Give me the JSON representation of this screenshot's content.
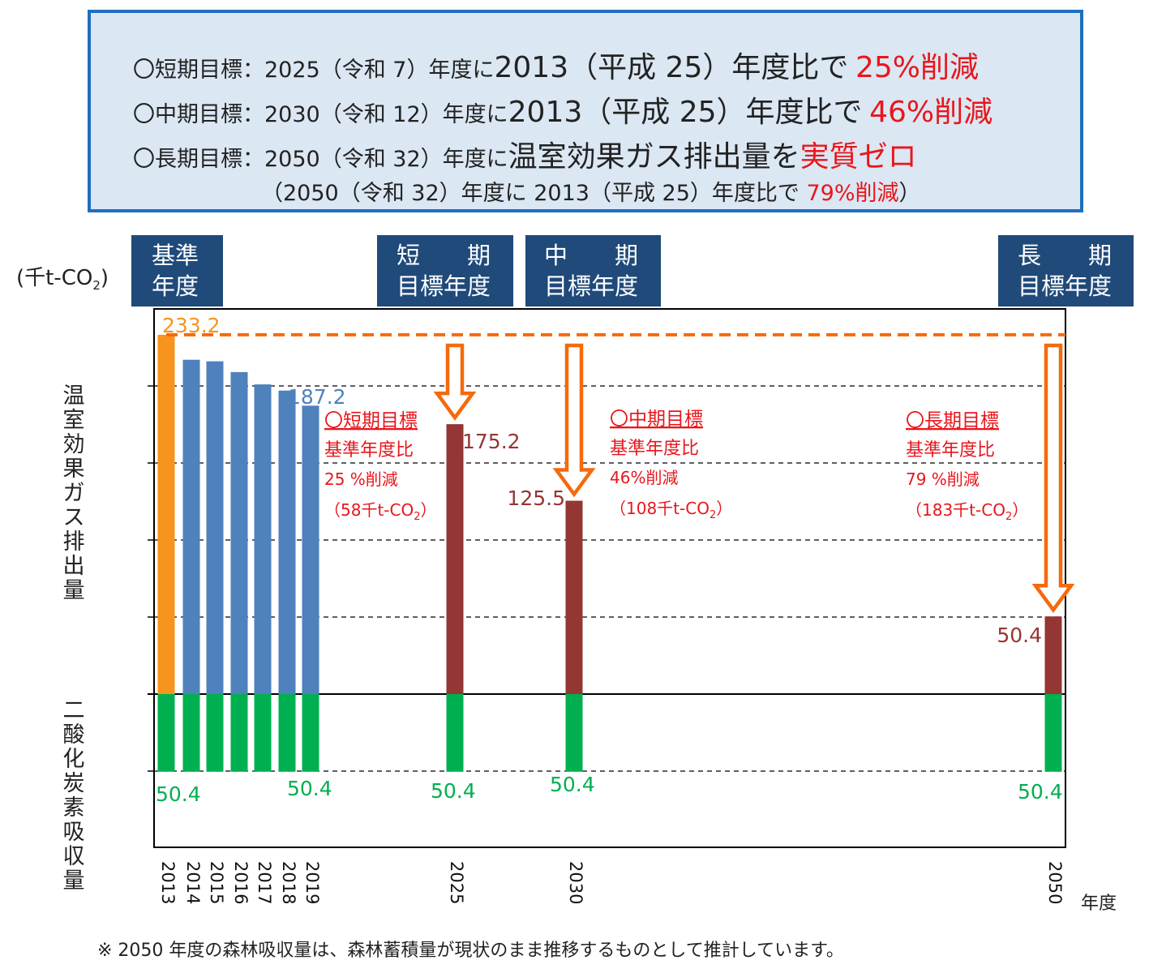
{
  "goals": {
    "line1": {
      "prefix": "〇短期目標：2025（令和 7）年度に",
      "big": "2013（平成 25）年度比で",
      "red": "25%削減"
    },
    "line2": {
      "prefix": "〇中期目標：2030（令和 12）年度に",
      "big": "2013（平成 25）年度比で",
      "red": "46%削減"
    },
    "line3": {
      "prefix": "〇長期目標：2050（令和 32）年度に",
      "big": "温室効果ガス排出量を",
      "red": "実質ゼロ"
    },
    "line4": {
      "prefix": "（2050（令和 32）年度に 2013（平成 25）年度比で",
      "red": "79%削減",
      "suffix": "）"
    }
  },
  "headers": {
    "base": [
      "基準",
      "年度"
    ],
    "short": [
      "短　　期",
      "目標年度"
    ],
    "mid": [
      "中　　期",
      "目標年度"
    ],
    "long": [
      "長　　期",
      "目標年度"
    ]
  },
  "unit_label": "(千t-CO",
  "unit_sub": "2",
  "unit_close": ")",
  "y_label_top": "温室効果ガス排出量",
  "y_label_bottom": "二酸化炭素吸収量",
  "x_unit": "年度",
  "footnote": "※  2050 年度の森林吸収量は、森林蓄積量が現状のまま推移するものとして推計しています。",
  "annotations": {
    "short": [
      "〇短期目標",
      "基準年度比",
      "25 %削減",
      "（58千t-CO",
      "2",
      "）"
    ],
    "mid": [
      "〇中期目標",
      "基準年度比",
      "46%削減",
      "（108千t-CO",
      "2",
      "）"
    ],
    "long": [
      "〇長期目標",
      "基準年度比",
      "79 %削減",
      "（183千t-CO",
      "2",
      "）"
    ]
  },
  "colors": {
    "base": "#f7941d",
    "actual": "#4f81bd",
    "target": "#943634",
    "sink": "#00b050",
    "arrow": "#f56a0c",
    "annotation": "#e8161c"
  },
  "chart_data": {
    "type": "bar",
    "categories": [
      "2013",
      "2014",
      "2015",
      "2016",
      "2017",
      "2018",
      "2019",
      "2025",
      "2030",
      "2050"
    ],
    "emissions": [
      233.2,
      217,
      216,
      209,
      201,
      197,
      187.2,
      175.2,
      125.5,
      50.4
    ],
    "bar_kind": [
      "base",
      "actual",
      "actual",
      "actual",
      "actual",
      "actual",
      "actual",
      "target",
      "target",
      "target"
    ],
    "absorption": [
      -50.4,
      -50.4,
      -50.4,
      -50.4,
      -50.4,
      -50.4,
      -50.4,
      -50.4,
      -50.4,
      -50.4
    ],
    "labels": {
      "emissions": {
        "2013": "233.2",
        "2019": "187.2",
        "2025": "175.2",
        "2030": "125.5",
        "2050": "50.4"
      },
      "absorption": {
        "2013": "50.4",
        "2019": "50.4",
        "2025": "50.4",
        "2030": "50.4",
        "2050": "50.4"
      }
    },
    "reference_line": 233.2,
    "ylim": [
      -100,
      250
    ],
    "grid": "dashed horizontal every 50",
    "ylabel": "温室効果ガス排出量 / 二酸化炭素吸収量",
    "xlabel": "年度"
  }
}
